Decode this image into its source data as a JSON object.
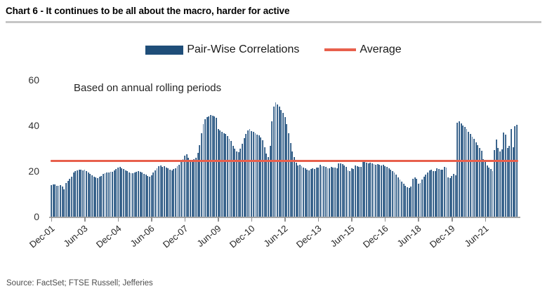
{
  "header": {
    "title": "Chart 6 - It continues to be all about the macro, harder for active"
  },
  "legend": {
    "bars_label": "Pair-Wise Correlations",
    "average_label": "Average"
  },
  "footer": {
    "source": "Source: FactSet; FTSE Russell; Jefferies"
  },
  "colors": {
    "bar_fill": "#1F4E79",
    "bar_edge": "#9FB6D4",
    "average_line": "#E8604C",
    "axis": "#A6A6A6"
  },
  "chart_data": {
    "type": "bar",
    "title": "Chart 6 - It continues to be all about the macro, harder for active",
    "annotation": "Based on annual rolling periods",
    "series_name": "Pair-Wise Correlations",
    "xlabel": "",
    "ylabel": "",
    "ylim": [
      0,
      60
    ],
    "y_ticks": [
      0,
      20,
      40,
      60
    ],
    "grid": false,
    "legend_position": "top-center",
    "x_tick_labels": [
      "Dec-01",
      "Jun-03",
      "Dec-04",
      "Jun-06",
      "Dec-07",
      "Jun-09",
      "Dec-10",
      "Jun-12",
      "Dec-13",
      "Jun-15",
      "Dec-16",
      "Jun-18",
      "Dec-19",
      "Jun-21"
    ],
    "x_tick_interval_months": 18,
    "x_start": "Dec-01",
    "frequency": "monthly",
    "average": 24.6,
    "values": [
      14.0,
      14.3,
      14.1,
      13.6,
      13.4,
      13.8,
      13.1,
      12.0,
      14.7,
      15.7,
      16.7,
      17.7,
      19.3,
      20.0,
      20.4,
      20.6,
      20.5,
      20.3,
      20.6,
      20.1,
      19.3,
      18.8,
      18.3,
      17.6,
      17.2,
      16.8,
      17.5,
      17.9,
      18.7,
      19.0,
      19.3,
      19.5,
      19.6,
      19.8,
      20.3,
      20.8,
      21.7,
      22.0,
      21.3,
      20.9,
      20.3,
      19.9,
      19.4,
      19.1,
      19.0,
      19.5,
      19.8,
      20.0,
      19.7,
      19.3,
      18.8,
      18.4,
      17.9,
      17.5,
      18.3,
      19.4,
      20.4,
      21.3,
      22.1,
      22.4,
      21.9,
      22.1,
      21.7,
      21.2,
      20.7,
      20.4,
      20.8,
      21.4,
      22.1,
      22.9,
      24.1,
      25.4,
      26.7,
      27.3,
      25.9,
      24.9,
      24.5,
      25.1,
      26.0,
      28.0,
      31.5,
      36.5,
      40.5,
      42.8,
      43.6,
      44.1,
      44.6,
      44.2,
      43.9,
      43.3,
      38.6,
      37.8,
      37.2,
      36.7,
      36.2,
      35.3,
      34.3,
      33.2,
      31.2,
      29.8,
      28.7,
      28.2,
      29.9,
      32.1,
      34.4,
      36.3,
      37.8,
      38.5,
      37.7,
      37.2,
      36.7,
      36.1,
      35.6,
      34.8,
      33.7,
      30.6,
      27.6,
      26.3,
      31.2,
      42.0,
      48.3,
      50.1,
      49.3,
      48.2,
      46.9,
      45.6,
      43.6,
      40.6,
      36.6,
      32.2,
      28.7,
      26.1,
      23.6,
      22.4,
      22.8,
      22.1,
      21.5,
      21.1,
      20.7,
      20.4,
      21.0,
      21.3,
      20.9,
      21.7,
      21.5,
      22.7,
      22.3,
      22.1,
      21.9,
      21.3,
      21.2,
      22.0,
      21.7,
      21.5,
      21.4,
      23.5,
      23.3,
      23.1,
      22.4,
      21.9,
      20.3,
      19.9,
      21.4,
      20.9,
      22.5,
      22.2,
      21.9,
      21.9,
      24.1,
      23.9,
      23.6,
      23.4,
      23.8,
      23.3,
      23.0,
      22.9,
      23.2,
      22.7,
      22.4,
      22.8,
      22.3,
      21.8,
      21.1,
      20.5,
      20.0,
      19.4,
      18.5,
      17.4,
      16.4,
      15.4,
      14.4,
      13.7,
      13.0,
      12.7,
      13.2,
      16.7,
      17.3,
      16.6,
      14.5,
      14.9,
      16.3,
      17.5,
      18.5,
      19.5,
      20.3,
      20.5,
      20.1,
      19.9,
      21.3,
      20.9,
      20.7,
      20.5,
      21.9,
      21.7,
      17.3,
      16.9,
      18.0,
      18.7,
      18.3,
      41.3,
      41.9,
      40.9,
      39.9,
      39.3,
      38.5,
      37.1,
      36.3,
      35.1,
      34.1,
      32.7,
      31.5,
      30.3,
      28.9,
      25.3,
      24.7,
      22.5,
      21.5,
      20.9,
      19.9,
      29.3,
      33.9,
      30.1,
      28.6,
      29.5,
      36.9,
      36.1,
      30.3,
      31.1,
      38.4,
      30.6,
      39.7,
      40.3
    ]
  }
}
